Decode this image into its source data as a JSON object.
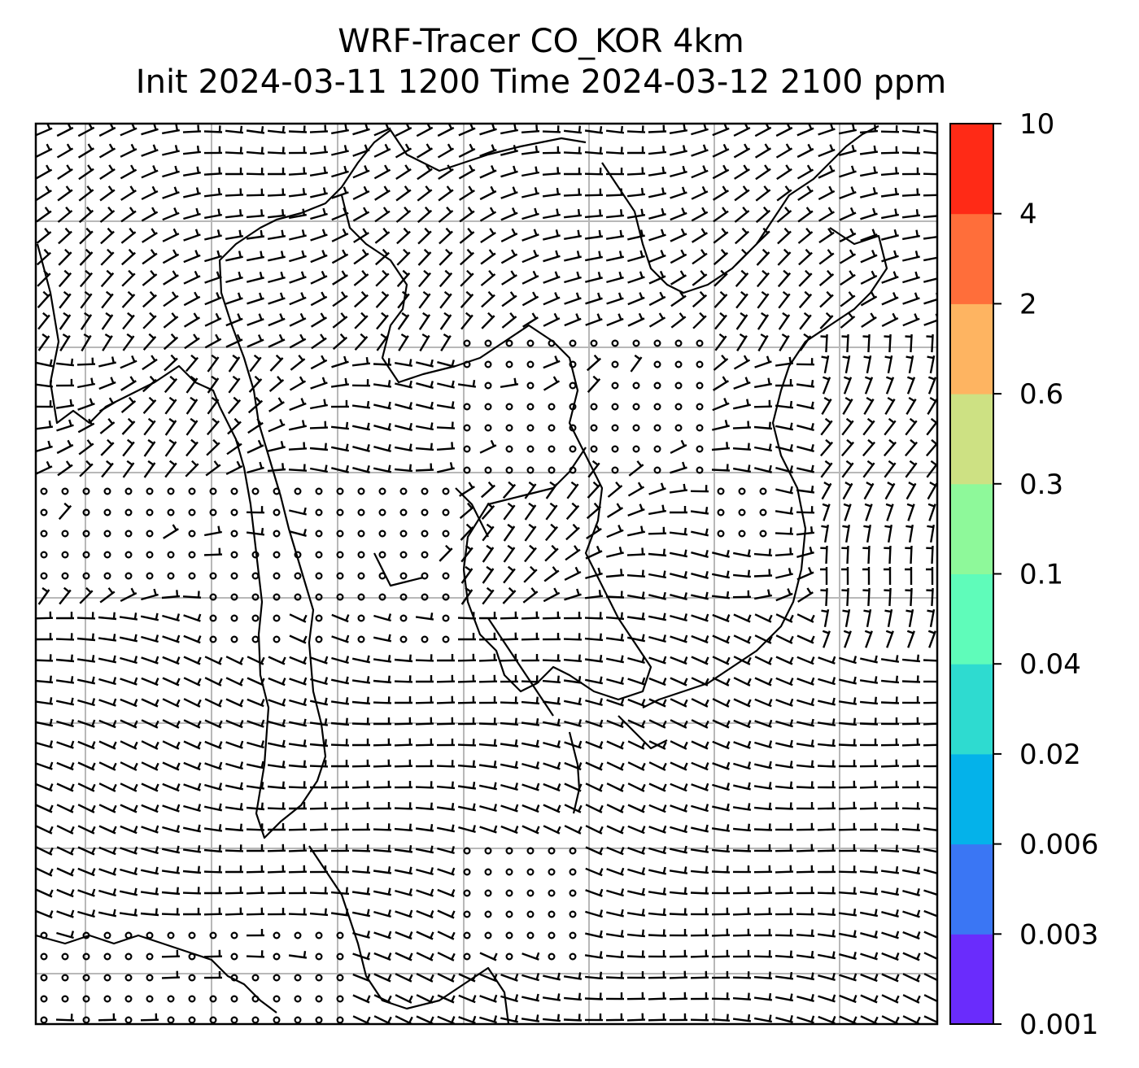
{
  "title": {
    "line1": "WRF-Tracer CO_KOR 4km",
    "line2": "Init 2024-03-11 1200 Time 2024-03-12 2100 ppm"
  },
  "colorbar": {
    "levels": [
      "0.001",
      "0.003",
      "0.006",
      "0.02",
      "0.04",
      "0.1",
      "0.3",
      "0.6",
      "2",
      "4",
      "10"
    ],
    "colors": [
      "#6a2cfc",
      "#3a76f4",
      "#04b2ea",
      "#2edbd0",
      "#5ffcba",
      "#8ef99a",
      "#cde183",
      "#feb461",
      "#ff6e3a",
      "#ff2a16"
    ]
  },
  "map": {
    "gridlines": true,
    "field": "wind barbs",
    "background": "#ffffff"
  }
}
